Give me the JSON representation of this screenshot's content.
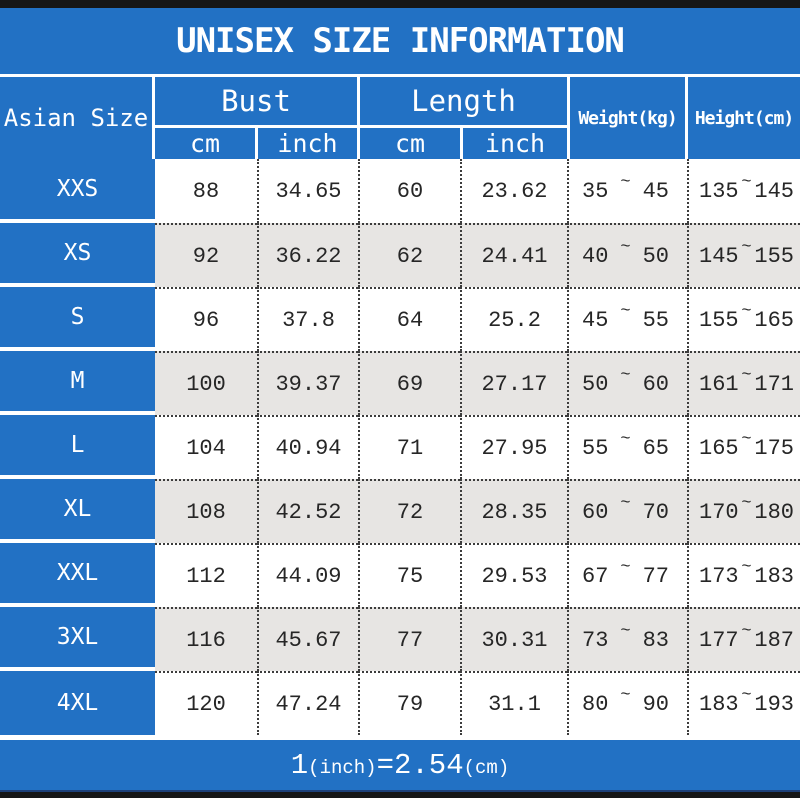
{
  "title": "UNISEX SIZE INFORMATION",
  "chart_data": {
    "type": "table",
    "title": "UNISEX SIZE INFORMATION",
    "corner_header": "Asian Size",
    "group_headers": [
      {
        "label": "Bust",
        "sub_headers": [
          "cm",
          "inch"
        ]
      },
      {
        "label": "Length",
        "sub_headers": [
          "cm",
          "inch"
        ]
      }
    ],
    "span_headers": [
      "Weight(kg)",
      "Height(cm)"
    ],
    "tilde": "~",
    "rows": [
      {
        "size": "XXS",
        "bust_cm": "88",
        "bust_inch": "34.65",
        "length_cm": "60",
        "length_inch": "23.62",
        "weight_min": "35",
        "weight_max": "45",
        "height_min": "135",
        "height_max": "145"
      },
      {
        "size": "XS",
        "bust_cm": "92",
        "bust_inch": "36.22",
        "length_cm": "62",
        "length_inch": "24.41",
        "weight_min": "40",
        "weight_max": "50",
        "height_min": "145",
        "height_max": "155"
      },
      {
        "size": "S",
        "bust_cm": "96",
        "bust_inch": "37.8",
        "length_cm": "64",
        "length_inch": "25.2",
        "weight_min": "45",
        "weight_max": "55",
        "height_min": "155",
        "height_max": "165"
      },
      {
        "size": "M",
        "bust_cm": "100",
        "bust_inch": "39.37",
        "length_cm": "69",
        "length_inch": "27.17",
        "weight_min": "50",
        "weight_max": "60",
        "height_min": "161",
        "height_max": "171"
      },
      {
        "size": "L",
        "bust_cm": "104",
        "bust_inch": "40.94",
        "length_cm": "71",
        "length_inch": "27.95",
        "weight_min": "55",
        "weight_max": "65",
        "height_min": "165",
        "height_max": "175"
      },
      {
        "size": "XL",
        "bust_cm": "108",
        "bust_inch": "42.52",
        "length_cm": "72",
        "length_inch": "28.35",
        "weight_min": "60",
        "weight_max": "70",
        "height_min": "170",
        "height_max": "180"
      },
      {
        "size": "XXL",
        "bust_cm": "112",
        "bust_inch": "44.09",
        "length_cm": "75",
        "length_inch": "29.53",
        "weight_min": "67",
        "weight_max": "77",
        "height_min": "173",
        "height_max": "183"
      },
      {
        "size": "3XL",
        "bust_cm": "116",
        "bust_inch": "45.67",
        "length_cm": "77",
        "length_inch": "30.31",
        "weight_min": "73",
        "weight_max": "83",
        "height_min": "177",
        "height_max": "187"
      },
      {
        "size": "4XL",
        "bust_cm": "120",
        "bust_inch": "47.24",
        "length_cm": "79",
        "length_inch": "31.1",
        "weight_min": "80",
        "weight_max": "90",
        "height_min": "183",
        "height_max": "193"
      }
    ],
    "footnote": {
      "value_1": "1",
      "unit_1": "(inch)",
      "equals": "=",
      "value_2": "2.54",
      "unit_2": "(cm)"
    }
  },
  "colors": {
    "blue": "#2271c4",
    "alt_row_gray": "#e7e5e3",
    "bar_black": "#161616"
  }
}
